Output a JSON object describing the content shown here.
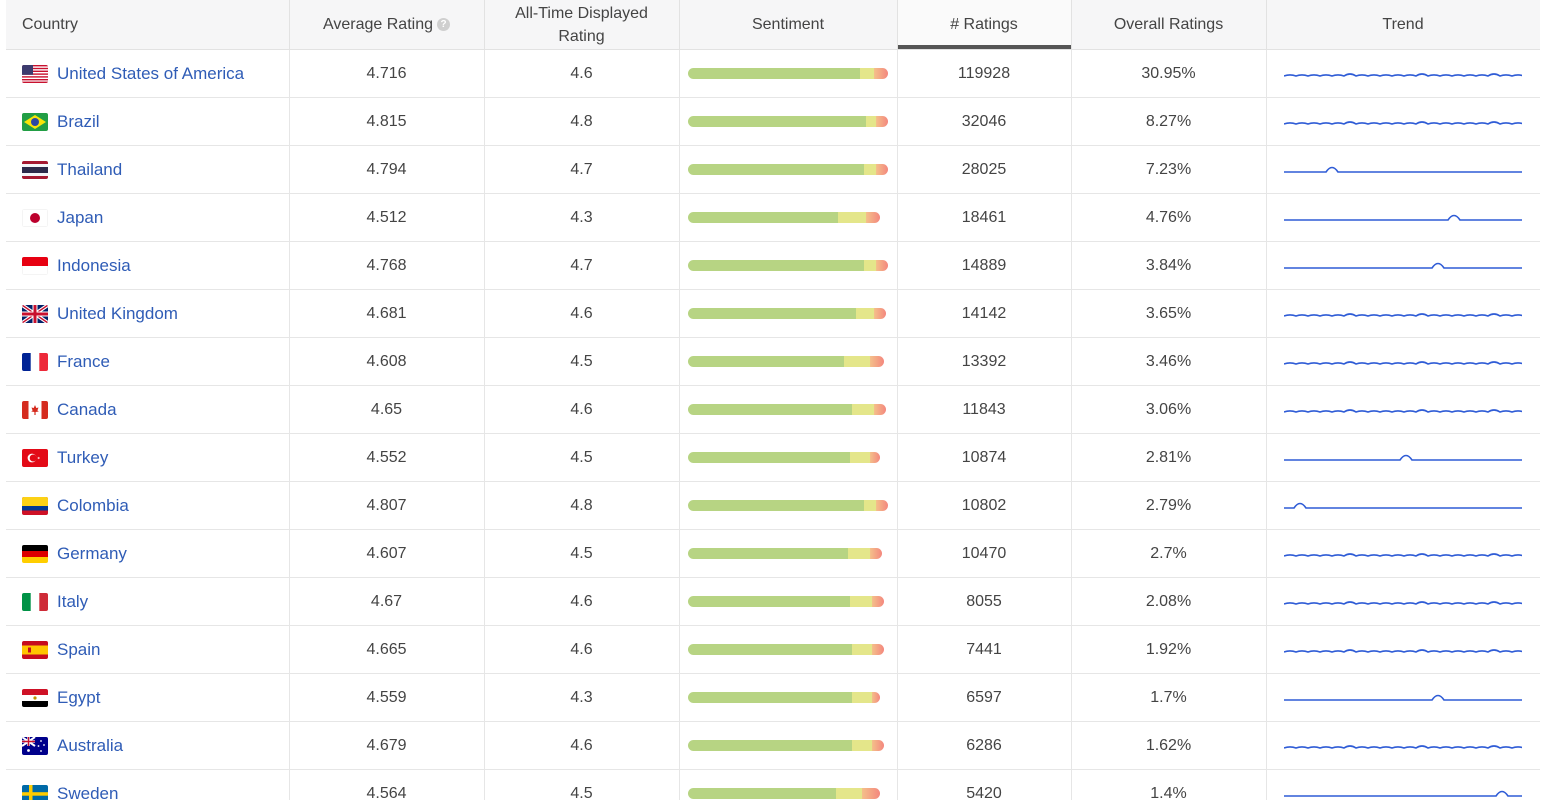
{
  "table": {
    "headers": {
      "country": "Country",
      "avg_rating": "Average Rating",
      "all_time": "All-Time Displayed Rating",
      "sentiment": "Sentiment",
      "num_ratings": "# Ratings",
      "overall": "Overall Ratings",
      "trend": "Trend"
    },
    "help_glyph": "?",
    "sorted_column": "num_ratings",
    "colors": {
      "link": "#2f5cb6",
      "positive": "#b7d483",
      "neutral": "#e4e68a",
      "negative": "#f4877e",
      "trend_line": "#2f5cd6"
    },
    "rows": [
      {
        "country": "United States of America",
        "flag": "us-flag-icon",
        "avg": "4.716",
        "all_time": "4.6",
        "ratings": "119928",
        "overall": "30.95%",
        "sentiment": [
          0.86,
          0.07,
          0.07
        ],
        "trend": "wavy"
      },
      {
        "country": "Brazil",
        "flag": "br-flag-icon",
        "avg": "4.815",
        "all_time": "4.8",
        "ratings": "32046",
        "overall": "8.27%",
        "sentiment": [
          0.89,
          0.05,
          0.06
        ],
        "trend": "wavy"
      },
      {
        "country": "Thailand",
        "flag": "th-flag-icon",
        "avg": "4.794",
        "all_time": "4.7",
        "ratings": "28025",
        "overall": "7.23%",
        "sentiment": [
          0.88,
          0.06,
          0.06
        ],
        "trend": "spike-early"
      },
      {
        "country": "Japan",
        "flag": "jp-flag-icon",
        "avg": "4.512",
        "all_time": "4.3",
        "ratings": "18461",
        "overall": "4.76%",
        "sentiment": [
          0.75,
          0.14,
          0.07
        ],
        "trend": "spike-late"
      },
      {
        "country": "Indonesia",
        "flag": "id-flag-icon",
        "avg": "4.768",
        "all_time": "4.7",
        "ratings": "14889",
        "overall": "3.84%",
        "sentiment": [
          0.88,
          0.06,
          0.06
        ],
        "trend": "spike-late2"
      },
      {
        "country": "United Kingdom",
        "flag": "gb-flag-icon",
        "avg": "4.681",
        "all_time": "4.6",
        "ratings": "14142",
        "overall": "3.65%",
        "sentiment": [
          0.84,
          0.09,
          0.06
        ],
        "trend": "wavy"
      },
      {
        "country": "France",
        "flag": "fr-flag-icon",
        "avg": "4.608",
        "all_time": "4.5",
        "ratings": "13392",
        "overall": "3.46%",
        "sentiment": [
          0.78,
          0.13,
          0.07
        ],
        "trend": "wavy"
      },
      {
        "country": "Canada",
        "flag": "ca-flag-icon",
        "avg": "4.65",
        "all_time": "4.6",
        "ratings": "11843",
        "overall": "3.06%",
        "sentiment": [
          0.82,
          0.11,
          0.06
        ],
        "trend": "wavy"
      },
      {
        "country": "Turkey",
        "flag": "tr-flag-icon",
        "avg": "4.552",
        "all_time": "4.5",
        "ratings": "10874",
        "overall": "2.81%",
        "sentiment": [
          0.81,
          0.1,
          0.05
        ],
        "trend": "spike-mid"
      },
      {
        "country": "Colombia",
        "flag": "co-flag-icon",
        "avg": "4.807",
        "all_time": "4.8",
        "ratings": "10802",
        "overall": "2.79%",
        "sentiment": [
          0.88,
          0.06,
          0.06
        ],
        "trend": "spike-start"
      },
      {
        "country": "Germany",
        "flag": "de-flag-icon",
        "avg": "4.607",
        "all_time": "4.5",
        "ratings": "10470",
        "overall": "2.7%",
        "sentiment": [
          0.8,
          0.11,
          0.06
        ],
        "trend": "wavy"
      },
      {
        "country": "Italy",
        "flag": "it-flag-icon",
        "avg": "4.67",
        "all_time": "4.6",
        "ratings": "8055",
        "overall": "2.08%",
        "sentiment": [
          0.81,
          0.11,
          0.06
        ],
        "trend": "wavy"
      },
      {
        "country": "Spain",
        "flag": "es-flag-icon",
        "avg": "4.665",
        "all_time": "4.6",
        "ratings": "7441",
        "overall": "1.92%",
        "sentiment": [
          0.82,
          0.1,
          0.06
        ],
        "trend": "wavy"
      },
      {
        "country": "Egypt",
        "flag": "eg-flag-icon",
        "avg": "4.559",
        "all_time": "4.3",
        "ratings": "6597",
        "overall": "1.7%",
        "sentiment": [
          0.82,
          0.1,
          0.04
        ],
        "trend": "spike-late2"
      },
      {
        "country": "Australia",
        "flag": "au-flag-icon",
        "avg": "4.679",
        "all_time": "4.6",
        "ratings": "6286",
        "overall": "1.62%",
        "sentiment": [
          0.82,
          0.1,
          0.06
        ],
        "trend": "wavy"
      },
      {
        "country": "Sweden",
        "flag": "se-flag-icon",
        "avg": "4.564",
        "all_time": "4.5",
        "ratings": "5420",
        "overall": "1.4%",
        "sentiment": [
          0.74,
          0.13,
          0.09
        ],
        "trend": "spike-end"
      }
    ]
  }
}
